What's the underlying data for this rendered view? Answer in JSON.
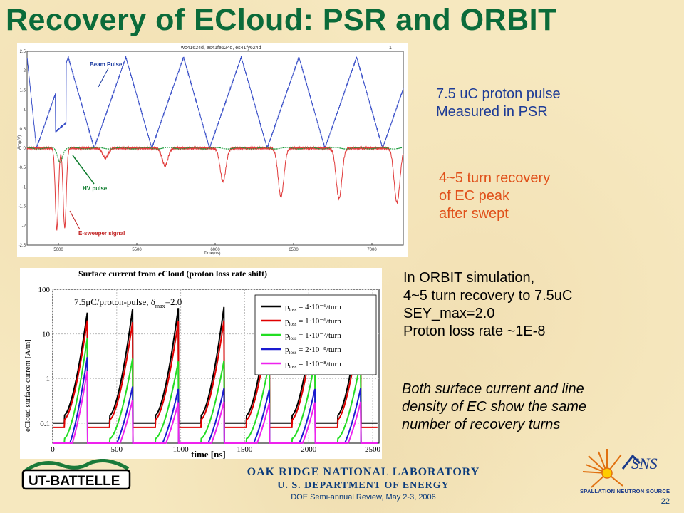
{
  "slide": {
    "title": "Recovery of ECloud: PSR and ORBIT",
    "page_number": "22"
  },
  "top_plot": {
    "header": "wc41624d, es41fe624d, es41fy624d",
    "corner_label": "1",
    "xlabel": "Time(ns)",
    "ylabel": "Amp(V)",
    "xticks": [
      "5000",
      "5500",
      "6000",
      "6500",
      "7000"
    ],
    "yticks": [
      "2.5",
      "2",
      "1.5",
      "1",
      "0.5",
      "0",
      "-0.5",
      "-1",
      "-1.5",
      "-2",
      "-2.5"
    ],
    "labels": {
      "beam_pulse": "Beam Pulse",
      "hv_pulse": "HV pulse",
      "esweeper": "E-sweeper signal"
    },
    "colors": {
      "beam": "#3a50c8",
      "esweeper": "#e03a3a",
      "hv": "#1a9a3a",
      "label_blue": "#1a3aa0",
      "label_green": "#0a7a2a",
      "label_red": "#c02020"
    }
  },
  "bottom_plot": {
    "title": "Surface current from eCloud (proton loss rate shift)",
    "annotation": "7.5μC/proton-pulse, δ",
    "annotation_sub": "max",
    "annotation_tail": "=2.0",
    "xlabel": "time [ns]",
    "ylabel": "eCloud surface current [A/m]",
    "xticks": [
      "0",
      "500",
      "1000",
      "1500",
      "2000",
      "2500"
    ],
    "yticks": [
      "100",
      "10",
      "1",
      "0.1"
    ],
    "legend": [
      {
        "label": "p",
        "sub": "loss",
        "value": "= 4·10⁻⁶/turn",
        "color": "#000000"
      },
      {
        "label": "p",
        "sub": "loss",
        "value": "= 1·10⁻⁶/turn",
        "color": "#e00000"
      },
      {
        "label": "p",
        "sub": "loss",
        "value": "= 1·10⁻⁷/turn",
        "color": "#22dd22"
      },
      {
        "label": "p",
        "sub": "loss",
        "value": "= 2·10⁻⁸/turn",
        "color": "#1a1ad0"
      },
      {
        "label": "p",
        "sub": "loss",
        "value": "= 1·10⁻⁸/turn",
        "color": "#ee22ee"
      }
    ]
  },
  "notes": {
    "psr": [
      "7.5 uC proton pulse",
      "Measured in PSR"
    ],
    "recovery": [
      "4~5 turn recovery",
      "of EC peak",
      "after swept"
    ],
    "orbit": [
      "In ORBIT simulation,",
      "4~5 turn recovery to 7.5uC",
      "SEY_max=2.0",
      "Proton loss rate ~1E-8"
    ],
    "both": [
      "Both surface current and line",
      "density of EC show the same",
      "number of recovery turns"
    ]
  },
  "footer": {
    "lab": "OAK RIDGE NATIONAL LABORATORY",
    "doe": "U. S. DEPARTMENT OF ENERGY",
    "review": "DOE Semi-annual Review, May 2-3, 2006"
  },
  "logos": {
    "ut_battelle": "UT-BATTELLE",
    "sns": "SNS",
    "sns_sub": "SPALLATION NEUTRON SOURCE"
  }
}
